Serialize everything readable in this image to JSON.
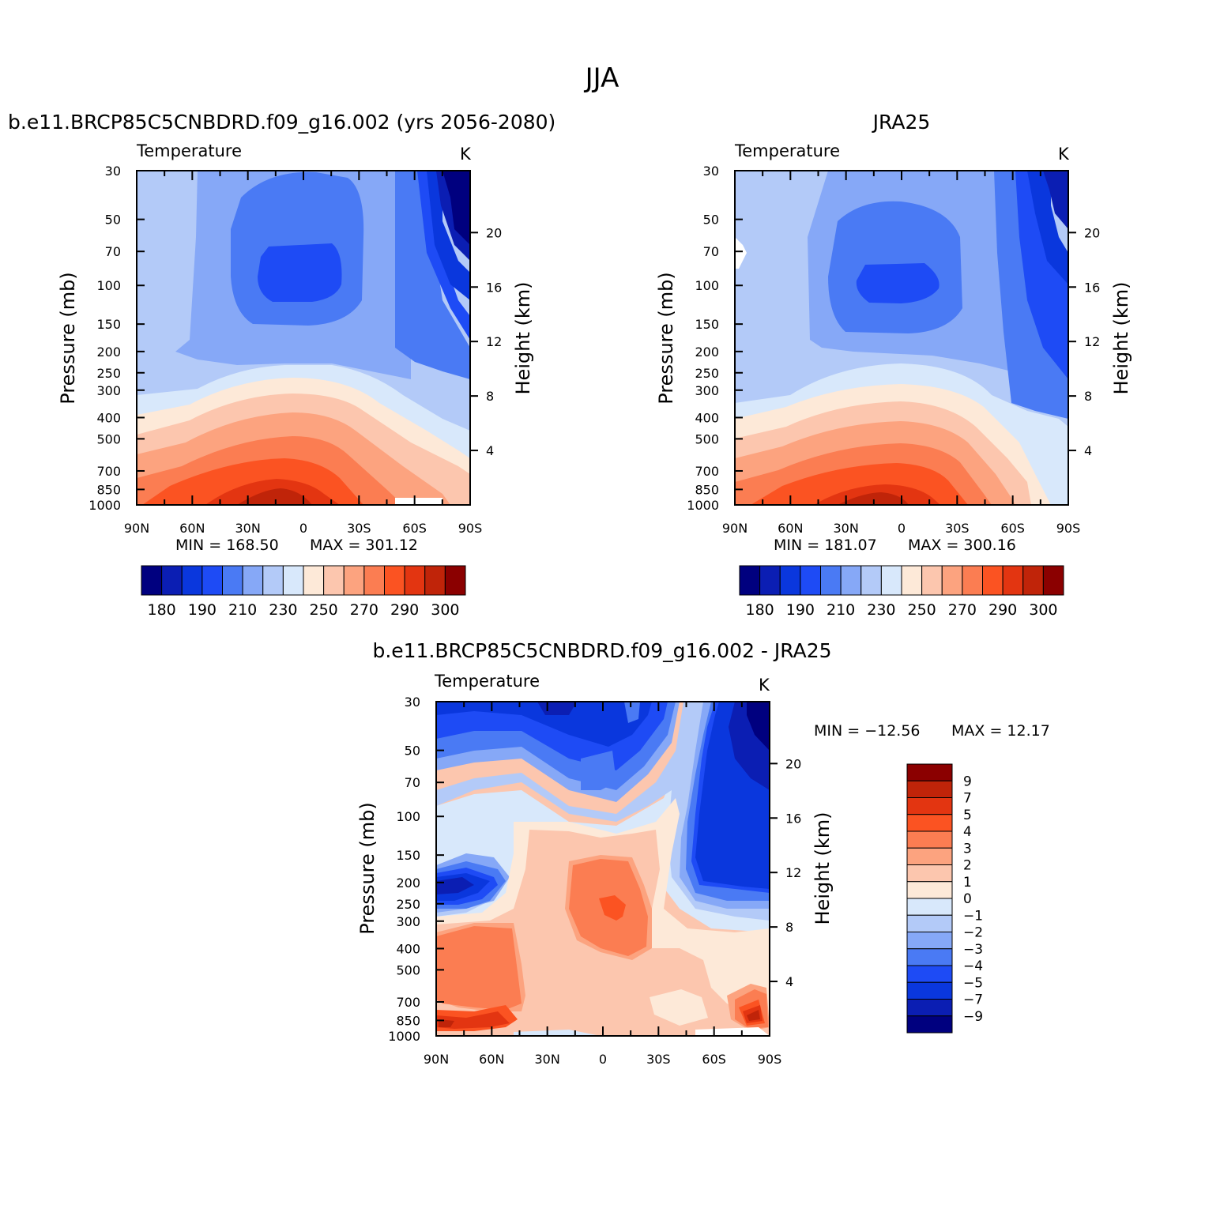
{
  "figure": {
    "title": "JJA"
  },
  "colors": {
    "abs_fills": [
      "#00007f",
      "#0b1eb3",
      "#0a37dd",
      "#1e4bf5",
      "#4a7af4",
      "#86a8f7",
      "#b3caf8",
      "#d8e8fb",
      "#fde9d8",
      "#fcc6ae",
      "#fca37f",
      "#fb7d52",
      "#fb5322",
      "#e33511",
      "#c02409",
      "#8b0000"
    ],
    "diff_fills": [
      "#00007f",
      "#0b1eb3",
      "#0a37dd",
      "#1e4bf5",
      "#4a7af4",
      "#86a8f7",
      "#b3caf8",
      "#d8e8fb",
      "#fde9d8",
      "#fcc6ae",
      "#fca37f",
      "#fb7d52",
      "#fb5322",
      "#e33511",
      "#c02409",
      "#8b0000"
    ]
  },
  "chart_data": [
    {
      "type": "heatmap",
      "title": "b.e11.BRCP85C5CNBDRD.f09_g16.002 (yrs 2056-2080)",
      "subtitle_left": "Temperature",
      "subtitle_right": "K",
      "ylabel": "Pressure (mb)",
      "ylabel_right": "Height (km)",
      "x_ticks": [
        "90N",
        "60N",
        "30N",
        "0",
        "30S",
        "60S",
        "90S"
      ],
      "y_ticks": [
        "30",
        "50",
        "70",
        "100",
        "150",
        "200",
        "250",
        "300",
        "400",
        "500",
        "700",
        "850",
        "1000"
      ],
      "y2_ticks": [
        "4",
        "8",
        "12",
        "16",
        "20"
      ],
      "min_text": "MIN = 168.50",
      "max_text": "MAX = 301.12",
      "levels": [
        "180",
        "190",
        "210",
        "230",
        "250",
        "270",
        "290",
        "300"
      ],
      "stats": {
        "min": 168.5,
        "max": 301.12
      }
    },
    {
      "type": "heatmap",
      "title": "JRA25",
      "subtitle_left": "Temperature",
      "subtitle_right": "K",
      "ylabel": "Pressure (mb)",
      "ylabel_right": "Height (km)",
      "x_ticks": [
        "90N",
        "60N",
        "30N",
        "0",
        "30S",
        "60S",
        "90S"
      ],
      "y_ticks": [
        "30",
        "50",
        "70",
        "100",
        "150",
        "200",
        "250",
        "300",
        "400",
        "500",
        "700",
        "850",
        "1000"
      ],
      "y2_ticks": [
        "4",
        "8",
        "12",
        "16",
        "20"
      ],
      "min_text": "MIN = 181.07",
      "max_text": "MAX = 300.16",
      "levels": [
        "180",
        "190",
        "210",
        "230",
        "250",
        "270",
        "290",
        "300"
      ],
      "stats": {
        "min": 181.07,
        "max": 300.16
      }
    },
    {
      "type": "heatmap",
      "title": "b.e11.BRCP85C5CNBDRD.f09_g16.002 - JRA25",
      "subtitle_left": "Temperature",
      "subtitle_right": "K",
      "ylabel": "Pressure (mb)",
      "ylabel_right": "Height (km)",
      "x_ticks": [
        "90N",
        "60N",
        "30N",
        "0",
        "30S",
        "60S",
        "90S"
      ],
      "y_ticks": [
        "30",
        "50",
        "70",
        "100",
        "150",
        "200",
        "250",
        "300",
        "400",
        "500",
        "700",
        "850",
        "1000"
      ],
      "y2_ticks": [
        "4",
        "8",
        "12",
        "16",
        "20"
      ],
      "min_text": "MIN = −12.56",
      "max_text": "MAX =   12.17",
      "levels": [
        "9",
        "7",
        "5",
        "4",
        "3",
        "2",
        "1",
        "0",
        "−1",
        "−2",
        "−3",
        "−4",
        "−5",
        "−7",
        "−9"
      ],
      "stats": {
        "min": -12.56,
        "max": 12.17
      }
    }
  ]
}
